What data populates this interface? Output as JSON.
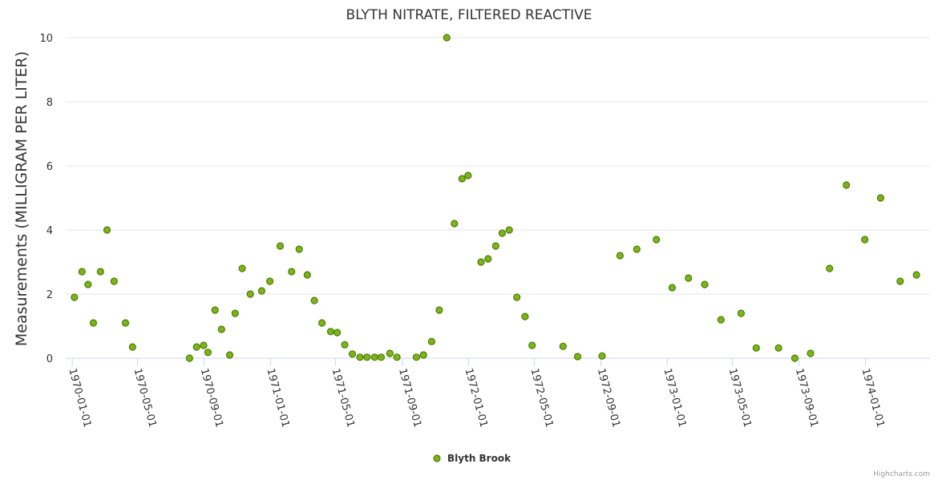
{
  "chart_data": {
    "type": "scatter",
    "title": "BLYTH NITRATE, FILTERED REACTIVE",
    "ylabel": "Measurements (MILLIGRAM PER LITER)",
    "xlabel": "",
    "ylim": [
      0,
      10
    ],
    "yticks": [
      0,
      2,
      4,
      6,
      8,
      10
    ],
    "xlim": [
      "1969-12-20",
      "1974-04-30"
    ],
    "xticks": [
      "1970-01-01",
      "1970-05-01",
      "1970-09-01",
      "1971-01-01",
      "1971-05-01",
      "1971-09-01",
      "1972-01-01",
      "1972-05-01",
      "1972-09-01",
      "1973-01-01",
      "1973-05-01",
      "1973-09-01",
      "1974-01-01"
    ],
    "grid": true,
    "legend_position": "bottom-center",
    "series": [
      {
        "name": "Blyth Brook",
        "color": "#7cb518",
        "border_color": "#4e7a08",
        "points": [
          [
            "1970-01-05",
            1.9
          ],
          [
            "1970-01-19",
            2.7
          ],
          [
            "1970-01-30",
            2.3
          ],
          [
            "1970-02-09",
            1.1
          ],
          [
            "1970-02-22",
            2.7
          ],
          [
            "1970-03-06",
            4.0
          ],
          [
            "1970-03-19",
            2.4
          ],
          [
            "1970-04-09",
            1.1
          ],
          [
            "1970-04-22",
            0.35
          ],
          [
            "1970-08-05",
            0.0
          ],
          [
            "1970-08-18",
            0.35
          ],
          [
            "1970-08-31",
            0.4
          ],
          [
            "1970-09-08",
            0.18
          ],
          [
            "1970-09-21",
            1.5
          ],
          [
            "1970-10-03",
            0.9
          ],
          [
            "1970-10-18",
            0.1
          ],
          [
            "1970-10-28",
            1.4
          ],
          [
            "1970-11-10",
            2.8
          ],
          [
            "1970-11-25",
            2.0
          ],
          [
            "1970-12-16",
            2.1
          ],
          [
            "1970-12-31",
            2.4
          ],
          [
            "1971-01-19",
            3.5
          ],
          [
            "1971-02-09",
            2.7
          ],
          [
            "1971-02-23",
            3.4
          ],
          [
            "1971-03-10",
            2.6
          ],
          [
            "1971-03-23",
            1.8
          ],
          [
            "1971-04-06",
            1.1
          ],
          [
            "1971-04-22",
            0.83
          ],
          [
            "1971-05-04",
            0.8
          ],
          [
            "1971-05-18",
            0.42
          ],
          [
            "1971-06-01",
            0.13
          ],
          [
            "1971-06-15",
            0.03
          ],
          [
            "1971-06-28",
            0.03
          ],
          [
            "1971-07-12",
            0.03
          ],
          [
            "1971-07-24",
            0.03
          ],
          [
            "1971-08-09",
            0.15
          ],
          [
            "1971-08-22",
            0.03
          ],
          [
            "1971-09-27",
            0.03
          ],
          [
            "1971-10-10",
            0.1
          ],
          [
            "1971-10-25",
            0.52
          ],
          [
            "1971-11-08",
            1.5
          ],
          [
            "1971-11-22",
            10.0
          ],
          [
            "1971-12-06",
            4.2
          ],
          [
            "1971-12-20",
            5.6
          ],
          [
            "1971-12-31",
            5.7
          ],
          [
            "1972-01-24",
            3.0
          ],
          [
            "1972-02-06",
            3.1
          ],
          [
            "1972-02-20",
            3.5
          ],
          [
            "1972-03-03",
            3.9
          ],
          [
            "1972-03-16",
            4.0
          ],
          [
            "1972-03-30",
            1.9
          ],
          [
            "1972-04-14",
            1.3
          ],
          [
            "1972-04-27",
            0.4
          ],
          [
            "1972-06-23",
            0.37
          ],
          [
            "1972-07-20",
            0.05
          ],
          [
            "1972-09-03",
            0.07
          ],
          [
            "1972-10-06",
            3.2
          ],
          [
            "1972-11-06",
            3.4
          ],
          [
            "1972-12-12",
            3.7
          ],
          [
            "1973-01-10",
            2.2
          ],
          [
            "1973-02-09",
            2.5
          ],
          [
            "1973-03-11",
            2.3
          ],
          [
            "1973-04-10",
            1.2
          ],
          [
            "1973-05-17",
            1.4
          ],
          [
            "1973-06-14",
            0.32
          ],
          [
            "1973-07-25",
            0.32
          ],
          [
            "1973-08-24",
            0.0
          ],
          [
            "1973-09-22",
            0.15
          ],
          [
            "1973-10-27",
            2.8
          ],
          [
            "1973-11-27",
            5.4
          ],
          [
            "1973-12-31",
            3.7
          ],
          [
            "1974-01-29",
            5.0
          ],
          [
            "1974-03-06",
            2.4
          ],
          [
            "1974-04-05",
            2.6
          ]
        ]
      }
    ]
  },
  "credits": "Highcharts.com"
}
